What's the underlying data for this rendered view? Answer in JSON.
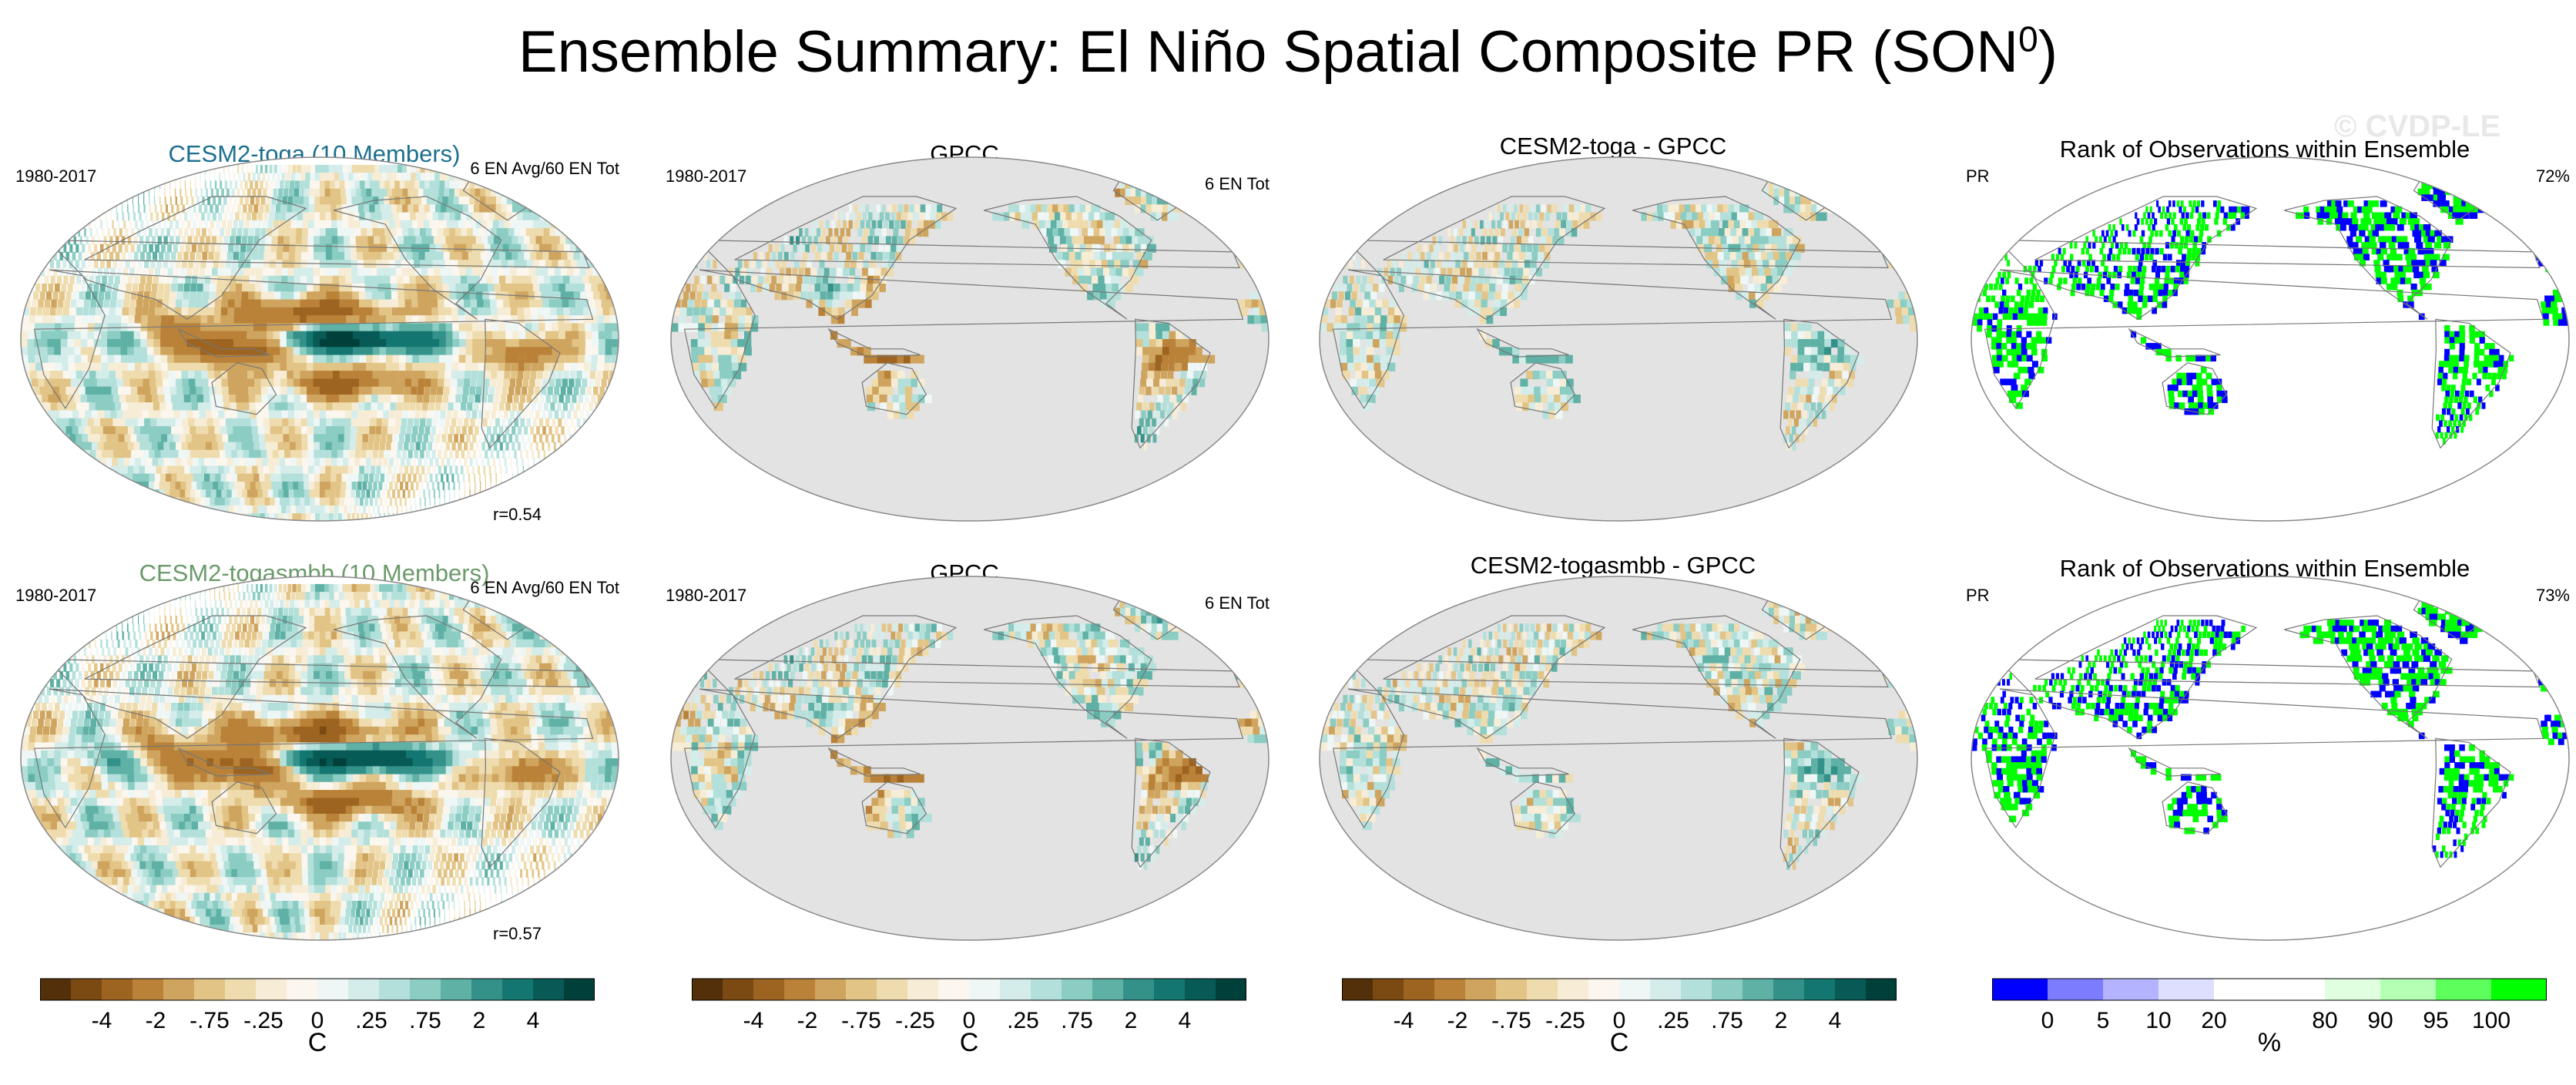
{
  "title": "Ensemble Summary: El Niño Spatial Composite PR (SON",
  "title_sup": "0",
  "title_end": ")",
  "watermark": "© CVDP-LE",
  "colors": {
    "brown_teal": [
      "#54300a",
      "#7a4a12",
      "#9c6420",
      "#b98238",
      "#cfa45e",
      "#e2c486",
      "#efdcae",
      "#f7edd6",
      "#fbf6ee",
      "#eef7f5",
      "#d4edea",
      "#b3e0da",
      "#8bccc3",
      "#5fb1a6",
      "#34918a",
      "#147670",
      "#075a55",
      "#00403b"
    ],
    "rank": [
      "#0000ff",
      "#7c7cff",
      "#b3b3ff",
      "#dedeff",
      "#ffffff",
      "#ffffff",
      "#e0ffe0",
      "#b3ffb3",
      "#5cff5c",
      "#00ff00"
    ]
  },
  "panels": [
    {
      "kind": "model",
      "title": "CESM2-toga (10 Members)",
      "title_color": "#1c6f8e",
      "left": "1980-2017",
      "right": "6 EN Avg/60 EN Tot",
      "bottom": "r=0.54"
    },
    {
      "kind": "obs",
      "title": "GPCC",
      "left": "1980-2017",
      "right": "6 EN Tot",
      "bottom": ""
    },
    {
      "kind": "diff",
      "title": "CESM2-toga - GPCC",
      "left": "",
      "right": "",
      "bottom": ""
    },
    {
      "kind": "rank",
      "title": "Rank of Observations within Ensemble",
      "left": "PR",
      "right": "72%",
      "bottom": ""
    },
    {
      "kind": "model",
      "title": "CESM2-togasmbb (10 Members)",
      "title_color": "#6b9a6b",
      "left": "1980-2017",
      "right": "6 EN Avg/60 EN Tot",
      "bottom": "r=0.57"
    },
    {
      "kind": "obs",
      "title": "GPCC",
      "left": "1980-2017",
      "right": "6 EN Tot",
      "bottom": ""
    },
    {
      "kind": "diff",
      "title": "CESM2-togasmbb - GPCC",
      "left": "",
      "right": "",
      "bottom": ""
    },
    {
      "kind": "rank",
      "title": "Rank of Observations within Ensemble",
      "left": "PR",
      "right": "73%",
      "bottom": ""
    }
  ],
  "colorbars": [
    {
      "kind": "brown_teal",
      "ticks": [
        "-4",
        "-2",
        "-.75",
        "-.25",
        "0",
        ".25",
        ".75",
        "2",
        "4"
      ],
      "unit": "C"
    },
    {
      "kind": "brown_teal",
      "ticks": [
        "-4",
        "-2",
        "-.75",
        "-.25",
        "0",
        ".25",
        ".75",
        "2",
        "4"
      ],
      "unit": "C"
    },
    {
      "kind": "brown_teal",
      "ticks": [
        "-4",
        "-2",
        "-.75",
        "-.25",
        "0",
        ".25",
        ".75",
        "2",
        "4"
      ],
      "unit": "C"
    },
    {
      "kind": "rank",
      "ticks": [
        "0",
        "5",
        "10",
        "20",
        "80",
        "90",
        "95",
        "100"
      ],
      "unit": "%"
    }
  ],
  "chart_data": {
    "type": "heatmap",
    "title": "Ensemble Summary: El Niño Spatial Composite PR (SON0)",
    "projection": "Robinson, Pacific-centered",
    "rows": [
      {
        "columns": [
          "CESM2-toga (10 Members)",
          "GPCC",
          "CESM2-toga - GPCC",
          "Rank of Observations within Ensemble"
        ],
        "period": "1980-2017",
        "model_events": "6 EN Avg/60 EN Tot",
        "obs_events": "6 EN Tot",
        "pattern_correlation": 0.54,
        "rank_percent_within": 72
      },
      {
        "columns": [
          "CESM2-togasmbb (10 Members)",
          "GPCC",
          "CESM2-togasmbb - GPCC",
          "Rank of Observations within Ensemble"
        ],
        "period": "1980-2017",
        "model_events": "6 EN Avg/60 EN Tot",
        "obs_events": "6 EN Tot",
        "pattern_correlation": 0.57,
        "rank_percent_within": 73
      }
    ],
    "colorbar_composite": {
      "levels": [
        "-4",
        "-2",
        "-.75",
        "-.25",
        "0",
        ".25",
        ".75",
        "2",
        "4"
      ],
      "unit": "C"
    },
    "colorbar_rank": {
      "levels": [
        "0",
        "5",
        "10",
        "20",
        "80",
        "90",
        "95",
        "100"
      ],
      "unit": "%"
    },
    "grid": false
  }
}
